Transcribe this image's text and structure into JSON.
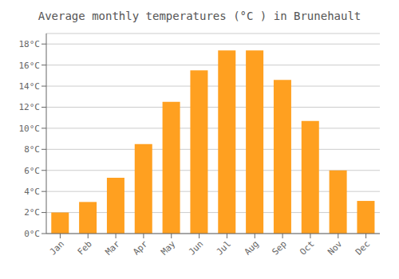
{
  "chart_data": {
    "type": "bar",
    "title": "Average monthly temperatures (°C ) in Brunehault",
    "categories": [
      "Jan",
      "Feb",
      "Mar",
      "Apr",
      "May",
      "Jun",
      "Jul",
      "Aug",
      "Sep",
      "Oct",
      "Nov",
      "Dec"
    ],
    "values": [
      2.0,
      3.0,
      5.3,
      8.5,
      12.5,
      15.5,
      17.4,
      17.4,
      14.6,
      10.7,
      6.0,
      3.1
    ],
    "color": "#FFA020",
    "ylim": [
      0,
      19
    ],
    "yticks": [
      {
        "value": 0,
        "label": "0°C"
      },
      {
        "value": 2,
        "label": "2°C"
      },
      {
        "value": 4,
        "label": "4°C"
      },
      {
        "value": 6,
        "label": "6°C"
      },
      {
        "value": 8,
        "label": "8°C"
      },
      {
        "value": 10,
        "label": "10°C"
      },
      {
        "value": 12,
        "label": "12°C"
      },
      {
        "value": 14,
        "label": "14°C"
      },
      {
        "value": 16,
        "label": "16°C"
      },
      {
        "value": 18,
        "label": "18°C"
      }
    ],
    "grid": true
  }
}
